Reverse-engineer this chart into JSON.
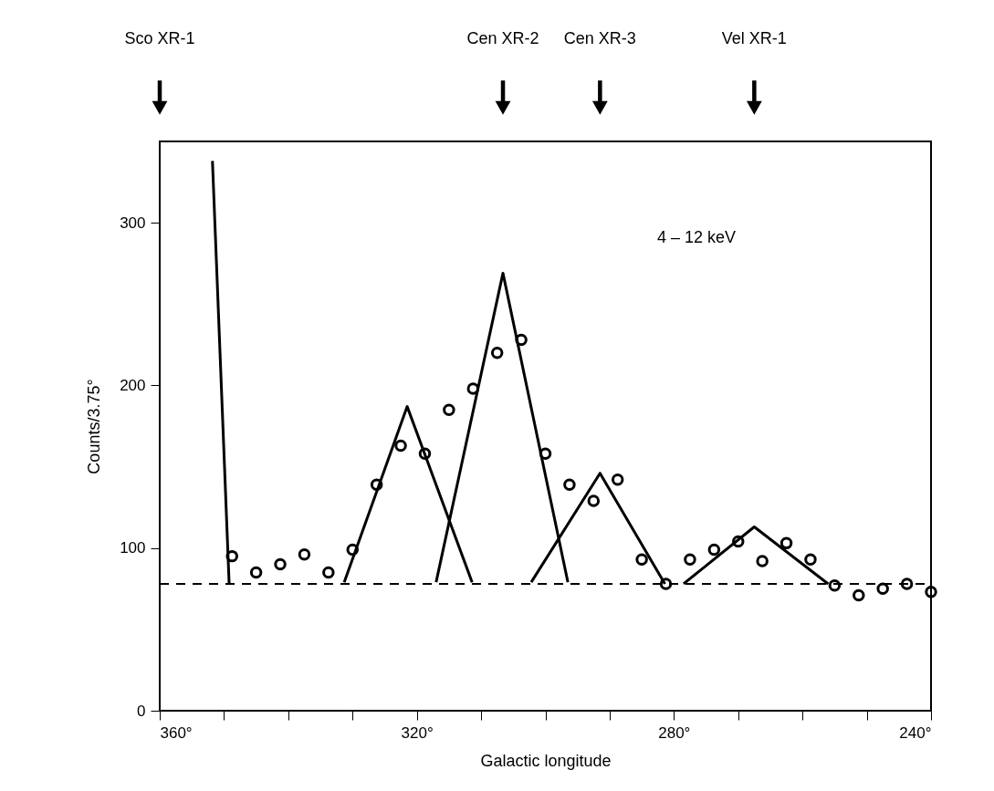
{
  "chart_data": {
    "type": "scatter",
    "xlabel": "Galactic longitude",
    "ylabel": "Counts/3.75°",
    "xlim": [
      360,
      240
    ],
    "ylim": [
      0,
      350
    ],
    "xticks": [
      {
        "value": 360,
        "label": "360°"
      },
      {
        "value": 350,
        "label": null
      },
      {
        "value": 340,
        "label": null
      },
      {
        "value": 330,
        "label": null
      },
      {
        "value": 320,
        "label": "320°"
      },
      {
        "value": 310,
        "label": null
      },
      {
        "value": 300,
        "label": null
      },
      {
        "value": 290,
        "label": null
      },
      {
        "value": 280,
        "label": "280°"
      },
      {
        "value": 270,
        "label": null
      },
      {
        "value": 260,
        "label": null
      },
      {
        "value": 250,
        "label": null
      },
      {
        "value": 240,
        "label": "240°"
      }
    ],
    "yticks": [
      0,
      100,
      200,
      300
    ],
    "series": [
      {
        "marker": "circle",
        "color": "#000000",
        "x": [
          348.75,
          345,
          341.25,
          337.5,
          333.75,
          330,
          326.25,
          322.5,
          318.75,
          315,
          311.25,
          307.5,
          303.75,
          300,
          296.25,
          292.5,
          288.75,
          285,
          281.25,
          277.5,
          273.75,
          270,
          266.25,
          262.5,
          258.75,
          255,
          251.25,
          247.5,
          243.75,
          240
        ],
        "values": [
          95,
          85,
          90,
          96,
          85,
          99,
          139,
          163,
          158,
          185,
          198,
          220,
          228,
          158,
          139,
          129,
          142,
          93,
          78,
          93,
          99,
          104,
          92,
          103,
          93,
          77,
          71,
          75,
          78,
          73
        ]
      },
      {
        "type": "line",
        "marker": "none",
        "line_style": "solid",
        "color": "#000000",
        "x": [
          351.8,
          349.2
        ],
        "values": [
          338,
          78
        ]
      },
      {
        "type": "line",
        "marker": "none",
        "line_style": "solid",
        "color": "#000000",
        "x": [
          331.3,
          321.5,
          311.4
        ],
        "values": [
          79,
          187,
          79
        ]
      },
      {
        "type": "line",
        "marker": "none",
        "line_style": "solid",
        "color": "#000000",
        "x": [
          317,
          306.6,
          296.5
        ],
        "values": [
          79,
          269,
          79
        ]
      },
      {
        "type": "line",
        "marker": "none",
        "line_style": "solid",
        "color": "#000000",
        "x": [
          302.2,
          291.5,
          281.4
        ],
        "values": [
          79,
          146,
          78
        ]
      },
      {
        "type": "line",
        "marker": "none",
        "line_style": "solid",
        "color": "#000000",
        "x": [
          278.5,
          267.5,
          256
        ],
        "values": [
          78,
          113,
          78
        ]
      }
    ],
    "ref_lines": [
      {
        "axis": "y",
        "value": 78,
        "line_style": "dashed",
        "color": "#000000"
      }
    ],
    "annotations": [
      "4 – 12 keV",
      "Sco XR-1",
      "Cen XR-2",
      "Cen XR-3",
      "Vel XR-1"
    ]
  }
}
